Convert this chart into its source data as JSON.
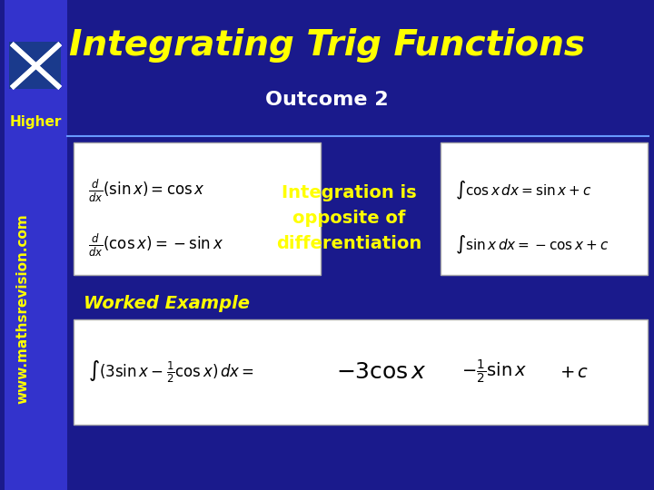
{
  "title": "Integrating Trig Functions",
  "outcome": "Outcome 2",
  "higher_label": "Higher",
  "website": "www.mathsrevision.com",
  "integration_text": "Integration is\nopposite of\ndifferentiation",
  "worked_example": "Worked Example",
  "bg_color": "#1a1a8c",
  "left_bar_color": "#3333cc",
  "title_color": "#ffff00",
  "outcome_color": "#ffffff",
  "higher_color": "#ffff00",
  "website_color": "#ffff00",
  "integration_color": "#ffff00",
  "worked_color": "#ffff00",
  "box_facecolor": "#ffffff",
  "box_edgecolor": "#cccccc"
}
